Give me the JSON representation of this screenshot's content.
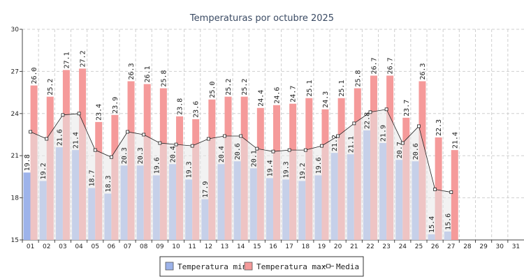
{
  "chart_data": {
    "type": "bar",
    "title": "Temperaturas por octubre 2025",
    "categories": [
      "01",
      "02",
      "03",
      "04",
      "05",
      "06",
      "07",
      "08",
      "09",
      "10",
      "11",
      "12",
      "13",
      "14",
      "15",
      "16",
      "17",
      "18",
      "19",
      "20",
      "21",
      "22",
      "23",
      "24",
      "25",
      "26",
      "27",
      "28",
      "29",
      "30",
      "31"
    ],
    "ylim": [
      15,
      30
    ],
    "yticks": [
      15,
      18,
      21,
      24,
      27,
      30
    ],
    "grid": true,
    "series": [
      {
        "name": "Temperatura min",
        "type": "bar",
        "color": "#9db3ea",
        "values": [
          19.8,
          19.2,
          21.6,
          21.4,
          18.7,
          18.3,
          20.3,
          20.3,
          19.6,
          20.4,
          19.3,
          17.9,
          20.4,
          20.6,
          20.1,
          19.4,
          19.3,
          19.2,
          19.6,
          21.2,
          21.1,
          22.8,
          21.9,
          20.7,
          20.6,
          15.4,
          15.6,
          null,
          null,
          null,
          null
        ]
      },
      {
        "name": "Temperatura max",
        "type": "bar",
        "color": "#f59a9a",
        "values": [
          26.0,
          25.2,
          27.1,
          27.2,
          23.4,
          23.9,
          26.3,
          26.1,
          25.8,
          23.8,
          23.6,
          25.0,
          25.2,
          25.2,
          24.4,
          24.6,
          24.7,
          25.1,
          24.3,
          25.1,
          25.8,
          26.7,
          26.7,
          23.7,
          26.3,
          22.3,
          21.4,
          null,
          null,
          null,
          null
        ]
      },
      {
        "name": "Media",
        "type": "line",
        "color": "#222222",
        "values": [
          22.7,
          22.2,
          23.9,
          24.0,
          21.4,
          20.9,
          22.7,
          22.5,
          21.9,
          21.8,
          21.7,
          22.2,
          22.4,
          22.4,
          21.5,
          21.3,
          21.4,
          21.4,
          21.7,
          22.4,
          23.3,
          24.1,
          24.3,
          21.9,
          23.1,
          18.6,
          18.4,
          null,
          null,
          null,
          null
        ]
      }
    ],
    "legend_placement": "bottom-center"
  }
}
